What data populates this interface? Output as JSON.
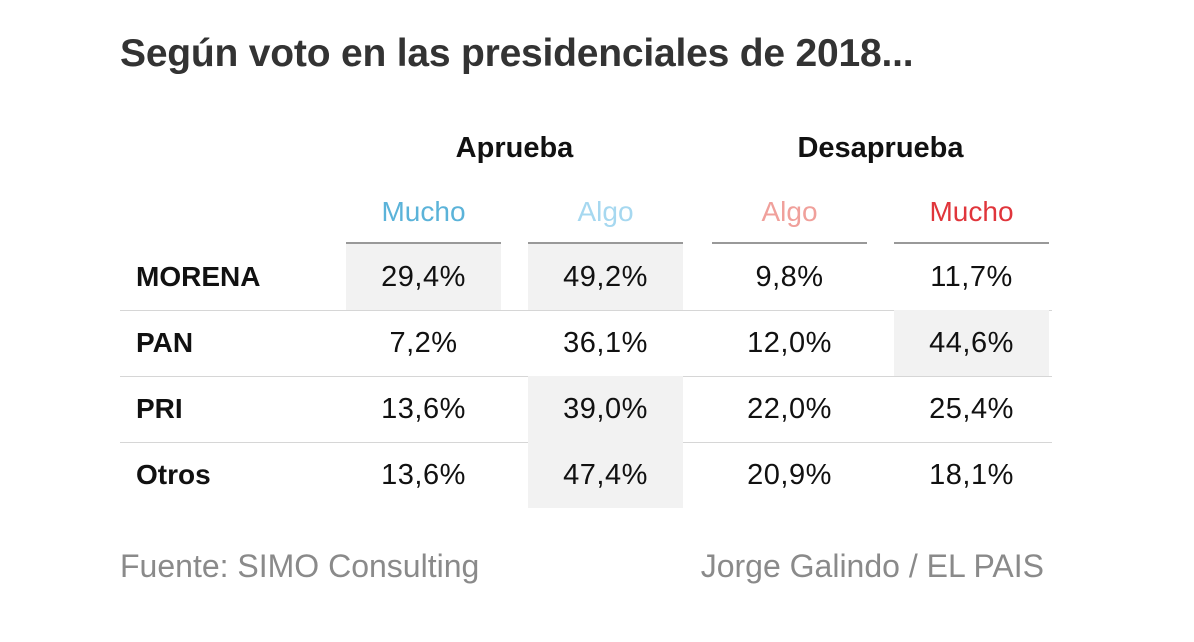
{
  "chart_data": {
    "type": "table",
    "title": "Según voto en las presidenciales de 2018...",
    "groups": [
      {
        "label": "Aprueba",
        "columns": [
          0,
          1
        ]
      },
      {
        "label": "Desaprueba",
        "columns": [
          2,
          3
        ]
      }
    ],
    "columns": [
      {
        "label": "Mucho",
        "color": "#5bb3d9"
      },
      {
        "label": "Algo",
        "color": "#a6d8f0"
      },
      {
        "label": "Algo",
        "color": "#f0a09b"
      },
      {
        "label": "Mucho",
        "color": "#e0353b"
      }
    ],
    "rows": [
      {
        "label": "MORENA",
        "values": [
          "29,4%",
          "49,2%",
          "9,8%",
          "11,7%"
        ],
        "highlight": [
          true,
          true,
          false,
          false
        ]
      },
      {
        "label": "PAN",
        "values": [
          "7,2%",
          "36,1%",
          "12,0%",
          "44,6%"
        ],
        "highlight": [
          false,
          false,
          false,
          true
        ]
      },
      {
        "label": "PRI",
        "values": [
          "13,6%",
          "39,0%",
          "22,0%",
          "25,4%"
        ],
        "highlight": [
          false,
          true,
          false,
          false
        ]
      },
      {
        "label": "Otros",
        "values": [
          "13,6%",
          "47,4%",
          "20,9%",
          "18,1%"
        ],
        "highlight": [
          false,
          true,
          false,
          false
        ]
      }
    ]
  },
  "footer": {
    "source": "Fuente: SIMO Consulting",
    "credit": "Jorge Galindo / EL PAIS"
  }
}
